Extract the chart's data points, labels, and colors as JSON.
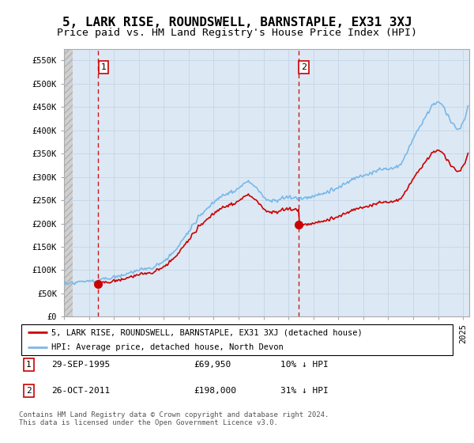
{
  "title": "5, LARK RISE, ROUNDSWELL, BARNSTAPLE, EX31 3XJ",
  "subtitle": "Price paid vs. HM Land Registry's House Price Index (HPI)",
  "title_fontsize": 11.5,
  "subtitle_fontsize": 9.5,
  "ylabel_ticks": [
    "£0",
    "£50K",
    "£100K",
    "£150K",
    "£200K",
    "£250K",
    "£300K",
    "£350K",
    "£400K",
    "£450K",
    "£500K",
    "£550K"
  ],
  "ytick_values": [
    0,
    50000,
    100000,
    150000,
    200000,
    250000,
    300000,
    350000,
    400000,
    450000,
    500000,
    550000
  ],
  "ylim": [
    0,
    575000
  ],
  "xlim_start": 1993.0,
  "xlim_end": 2025.5,
  "hpi_color": "#7ab8e8",
  "price_color": "#cc0000",
  "sale1_date": 1995.75,
  "sale1_price": 69950,
  "sale1_label": "1",
  "sale2_date": 2011.82,
  "sale2_price": 198000,
  "sale2_label": "2",
  "legend_line1": "5, LARK RISE, ROUNDSWELL, BARNSTAPLE, EX31 3XJ (detached house)",
  "legend_line2": "HPI: Average price, detached house, North Devon",
  "footnote": "Contains HM Land Registry data © Crown copyright and database right 2024.\nThis data is licensed under the Open Government Licence v3.0.",
  "grid_color": "#c8d8e8",
  "plot_bg": "#dce9f5",
  "hatch_color": "#c8c8c8"
}
